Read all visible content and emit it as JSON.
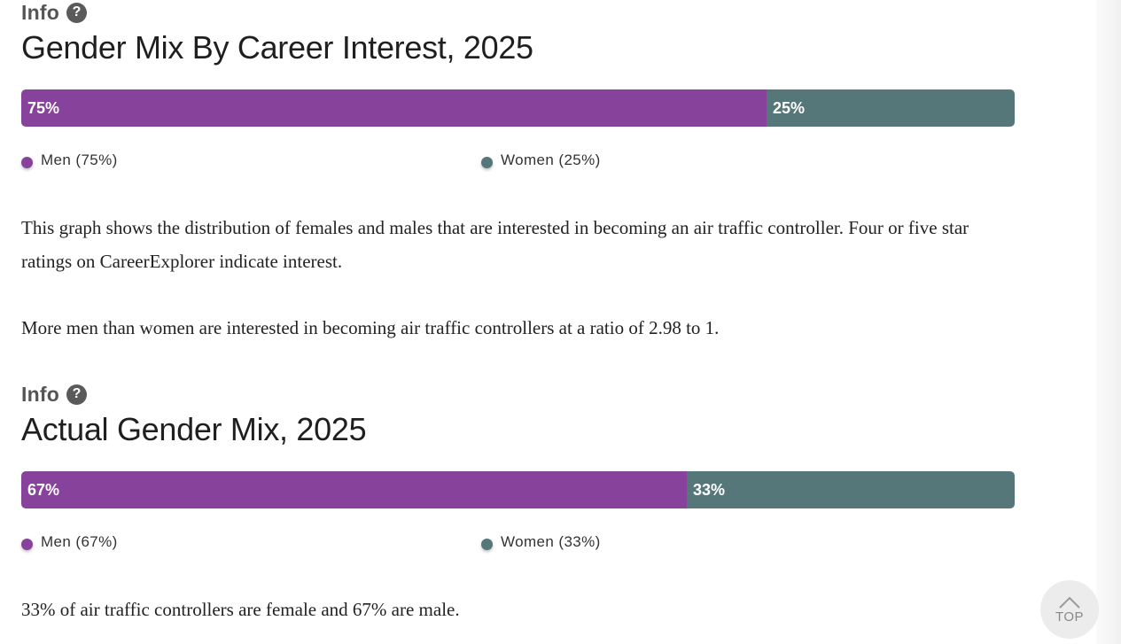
{
  "colors": {
    "men": "#87439b",
    "women": "#557779"
  },
  "sections": [
    {
      "info_label": "Info",
      "title": "Gender Mix By Career Interest, 2025",
      "paragraphs": [
        "This graph shows the distribution of females and males that are interested in becoming an air traffic controller. Four or five star ratings on CareerExplorer indicate interest.",
        "More men than women are interested in becoming air traffic controllers at a ratio of 2.98 to 1."
      ]
    },
    {
      "info_label": "Info",
      "title": "Actual Gender Mix, 2025",
      "paragraphs": [
        "33% of air traffic controllers are female and 67% are male."
      ]
    }
  ],
  "chart_data": [
    {
      "type": "bar",
      "orientation": "horizontal-stacked",
      "title": "Gender Mix By Career Interest, 2025",
      "categories": [
        "Men",
        "Women"
      ],
      "values": [
        75,
        25
      ],
      "data_labels": [
        "75%",
        "25%"
      ],
      "legend": [
        "Men (75%)",
        "Women (25%)"
      ],
      "unit": "%"
    },
    {
      "type": "bar",
      "orientation": "horizontal-stacked",
      "title": "Actual Gender Mix, 2025",
      "categories": [
        "Men",
        "Women"
      ],
      "values": [
        67,
        33
      ],
      "data_labels": [
        "67%",
        "33%"
      ],
      "legend": [
        "Men (67%)",
        "Women (33%)"
      ],
      "unit": "%"
    }
  ],
  "help_icon_glyph": "?",
  "scroll_top": {
    "label": "TOP",
    "icon": "chevron-up-icon"
  }
}
